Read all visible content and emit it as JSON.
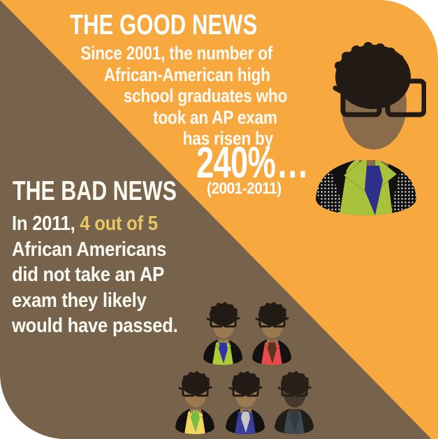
{
  "canvas": {
    "orange": "#F7A83E",
    "brown": "#77624B",
    "white": "#FFFFFF"
  },
  "good_news": {
    "title": "THE GOOD NEWS",
    "lines": [
      "Since 2001, the number of",
      "African-American high",
      "school graduates who",
      "took an AP exam",
      "has risen by"
    ],
    "stat_value": "240%",
    "stat_ellipsis": "...",
    "stat_range": "(2001-2011)"
  },
  "bad_news": {
    "title": "THE BAD NEWS",
    "line1_prefix": "In 2011, ",
    "line1_highlight": "4 out of 5",
    "lines": [
      "African Americans",
      "did not take an AP",
      "exam they likely",
      "would have passed."
    ],
    "highlight_color": "#E8C763"
  },
  "hero_figure": {
    "name": "hero-graduate-lime-shirt",
    "skin": "#8A6B4A",
    "hair": "#221B15",
    "shirt": "#A9C23B",
    "tie": "#2E2F8B",
    "jacket": "#131110"
  },
  "figures": [
    {
      "name": "graduate-lime-shirt",
      "skin": "#9A7850",
      "hair": "#221B15",
      "shirt": "#AFCB36",
      "tie": "#2F35A8",
      "jacket": "#141210"
    },
    {
      "name": "graduate-red-shirt",
      "skin": "#9A7850",
      "hair": "#221B15",
      "shirt": "#E84A4C",
      "tie": "#57361E",
      "jacket": "#141210"
    },
    {
      "name": "graduate-yellow-shirt",
      "skin": "#9A7850",
      "hair": "#221B15",
      "shirt": "#F4D55F",
      "tie": "#76BE43",
      "jacket": "#141210"
    },
    {
      "name": "graduate-blue-shirt",
      "skin": "#9A7850",
      "hair": "#221B15",
      "shirt": "#3A3F9E",
      "tie": "#C7C6C4",
      "jacket": "#141210"
    },
    {
      "name": "graduate-shadowed",
      "skin": "#44392C",
      "hair": "#262019",
      "shirt": "#3E4A50",
      "tie": "#333B40",
      "jacket": "#201C18"
    }
  ]
}
